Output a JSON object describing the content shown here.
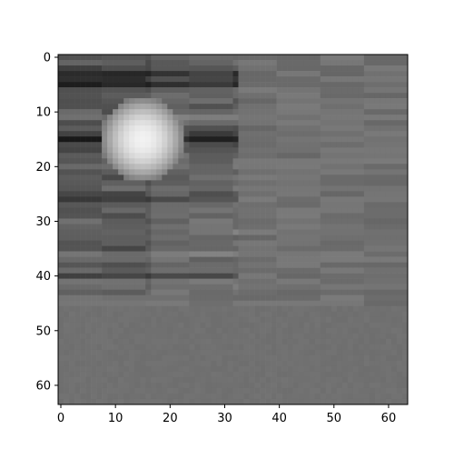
{
  "chart_data": {
    "type": "heatmap",
    "colormap": "gray",
    "grid": false,
    "x_ticks": [
      0,
      10,
      20,
      30,
      40,
      50,
      60
    ],
    "y_ticks": [
      0,
      10,
      20,
      30,
      40,
      50,
      60
    ],
    "x_range": [
      -0.5,
      63.5
    ],
    "y_range": [
      -0.5,
      63.5
    ],
    "y_direction": "top-to-bottom",
    "shape": [
      64,
      64
    ],
    "background_value": 0.44,
    "band_rows": [
      [
        0,
        0.38
      ],
      [
        1,
        0.34
      ],
      [
        2,
        0.3
      ],
      [
        3,
        0.16
      ],
      [
        4,
        0.2
      ],
      [
        5,
        0.12
      ],
      [
        6,
        0.3
      ],
      [
        7,
        0.36
      ],
      [
        8,
        0.33
      ],
      [
        9,
        0.31
      ],
      [
        10,
        0.36
      ],
      [
        11,
        0.4
      ],
      [
        12,
        0.34
      ],
      [
        13,
        0.3
      ],
      [
        14,
        0.22
      ],
      [
        15,
        0.1
      ],
      [
        16,
        0.24
      ],
      [
        17,
        0.28
      ],
      [
        18,
        0.34
      ],
      [
        19,
        0.36
      ],
      [
        20,
        0.38
      ],
      [
        21,
        0.32
      ],
      [
        22,
        0.34
      ],
      [
        23,
        0.36
      ],
      [
        24,
        0.38
      ],
      [
        25,
        0.3
      ],
      [
        26,
        0.22
      ],
      [
        27,
        0.4
      ],
      [
        28,
        0.36
      ],
      [
        29,
        0.34
      ],
      [
        30,
        0.38
      ],
      [
        31,
        0.36
      ],
      [
        32,
        0.4
      ],
      [
        33,
        0.38
      ],
      [
        34,
        0.36
      ],
      [
        35,
        0.32
      ],
      [
        36,
        0.4
      ],
      [
        37,
        0.36
      ],
      [
        38,
        0.34
      ],
      [
        39,
        0.38
      ],
      [
        40,
        0.24
      ],
      [
        41,
        0.4
      ],
      [
        42,
        0.42
      ],
      [
        43,
        0.41
      ]
    ],
    "bright_spot": {
      "x": 15,
      "y": 15,
      "value": 0.95
    }
  }
}
